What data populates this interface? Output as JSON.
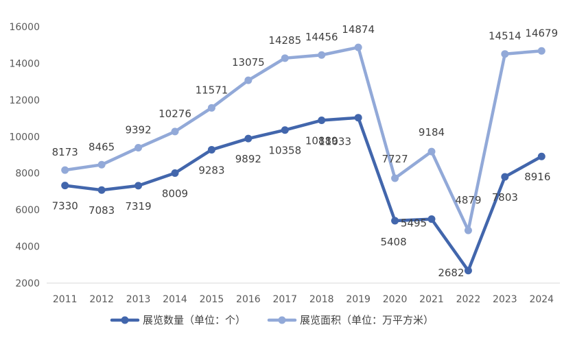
{
  "chart_data": {
    "type": "line",
    "x": [
      "2011",
      "2012",
      "2013",
      "2014",
      "2015",
      "2016",
      "2017",
      "2018",
      "2019",
      "2020",
      "2021",
      "2022",
      "2023",
      "2024"
    ],
    "ylim": [
      2000,
      16000
    ],
    "yticks": [
      2000,
      4000,
      6000,
      8000,
      10000,
      12000,
      14000,
      16000
    ],
    "grid": false,
    "legend_position": "bottom",
    "series": [
      {
        "name": "展览数量（单位：个）",
        "color": "#4266AC",
        "values": [
          7330,
          7083,
          7319,
          8009,
          9283,
          9892,
          10358,
          10889,
          11033,
          5408,
          5495,
          2682,
          7803,
          8916
        ]
      },
      {
        "name": "展览面积（单位：万平方米）",
        "color": "#92A9D8",
        "values": [
          8173,
          8465,
          9392,
          10276,
          11571,
          13075,
          14285,
          14456,
          14874,
          7727,
          9184,
          4879,
          14514,
          14679
        ]
      }
    ]
  }
}
